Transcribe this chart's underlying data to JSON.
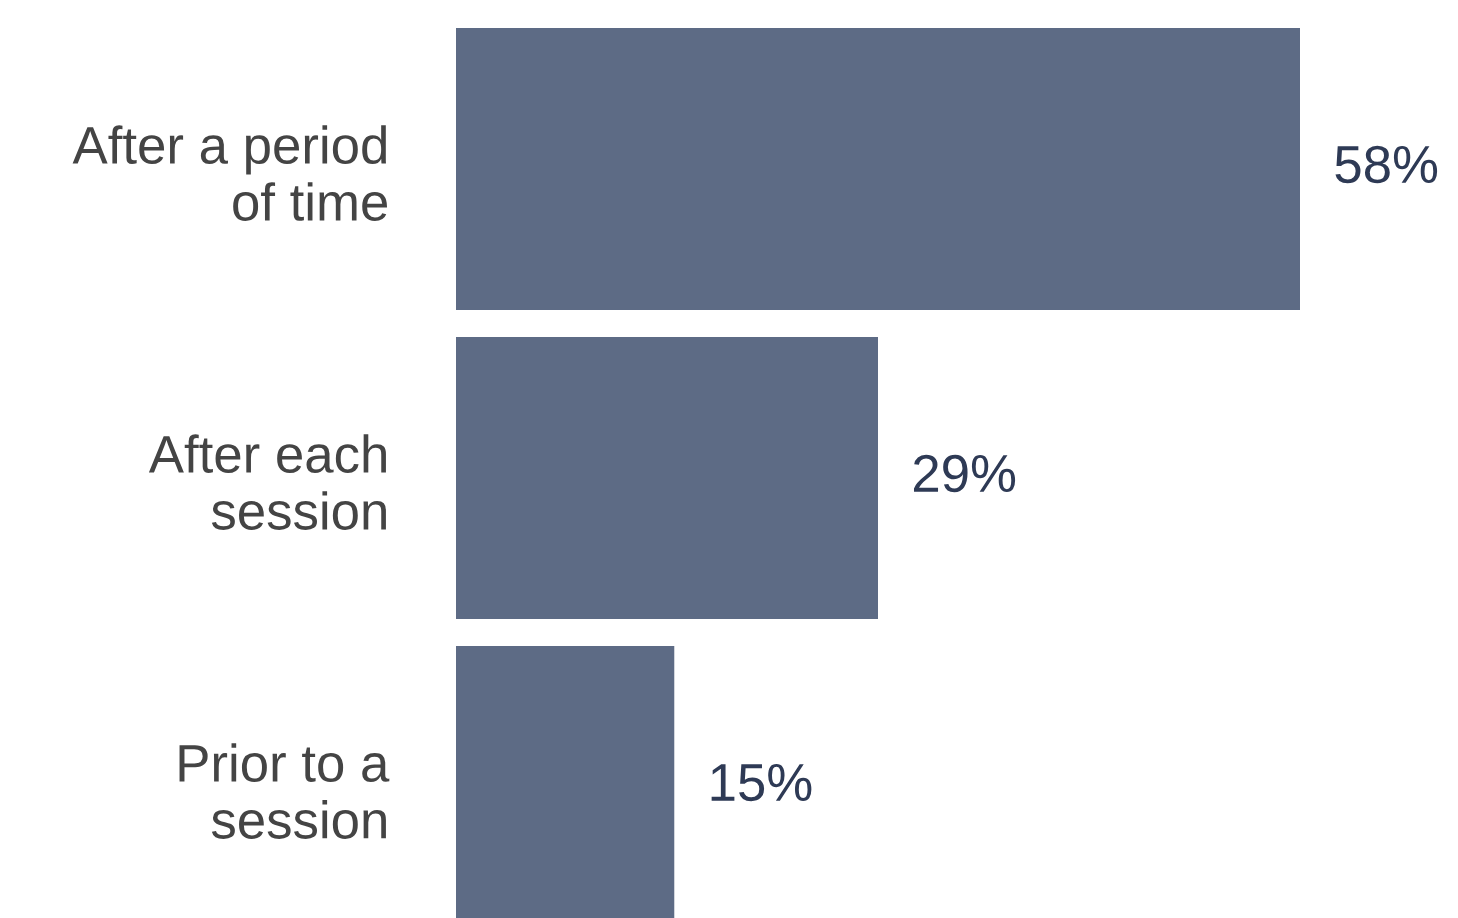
{
  "chart_data": {
    "type": "bar",
    "orientation": "horizontal",
    "categories": [
      "After a period\nof time",
      "After each\nsession",
      "Prior to a\nsession"
    ],
    "values": [
      58,
      29,
      15
    ],
    "value_labels": [
      "58%",
      "29%",
      "15%"
    ],
    "color": "#5d6b85",
    "grid": false,
    "legend": false
  }
}
